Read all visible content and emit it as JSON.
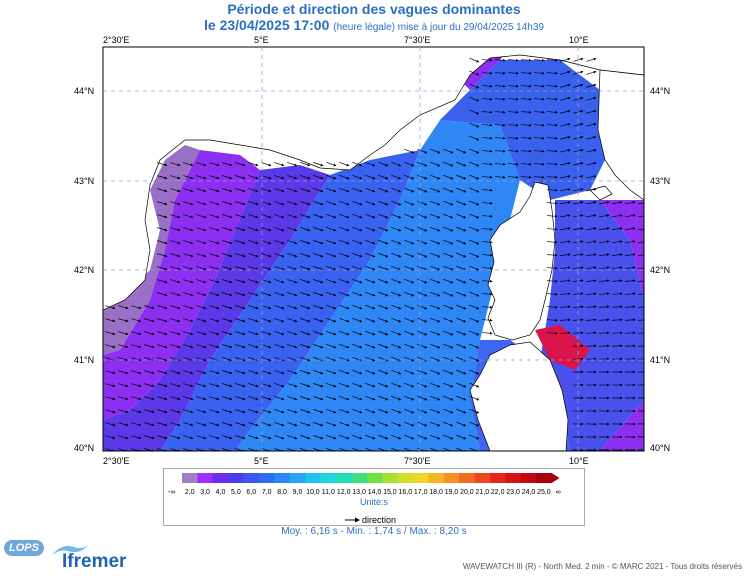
{
  "title": "Période et direction des vagues dominantes",
  "subtitle_date": "le 23/04/2025 17:00",
  "subtitle_note": "(heure légale) mise à jour du 29/04/2025 14h39",
  "lon_labels": [
    "2°30'E",
    "5°E",
    "7°30'E",
    "10°E"
  ],
  "lat_labels": [
    "44°N",
    "43°N",
    "42°N",
    "41°N",
    "40°N"
  ],
  "legend": {
    "values": [
      "2,0",
      "3,0",
      "4,0",
      "5,0",
      "6,0",
      "7,0",
      "8,0",
      "9,0",
      "10,0",
      "11,0",
      "12,0",
      "13,0",
      "14,0",
      "15,0",
      "16,0",
      "17,0",
      "18,0",
      "19,0",
      "20,0",
      "21,0",
      "22,0",
      "23,0",
      "24,0",
      "25,0"
    ],
    "low_symbol": "-∞",
    "high_symbol": "∞",
    "unit_label": "Unité:s",
    "direction_label": "direction",
    "colors": [
      "#a07ec8",
      "#9b30ff",
      "#6a2cf0",
      "#4a3de8",
      "#3a55f0",
      "#2e6cf5",
      "#2c86f5",
      "#27a4f4",
      "#22c2f0",
      "#20d6dc",
      "#22dcb4",
      "#3ede7a",
      "#6fe046",
      "#a6e033",
      "#d0e02a",
      "#f0d628",
      "#f6b525",
      "#f69022",
      "#f46a1f",
      "#f0461c",
      "#e8251a",
      "#d41218",
      "#c00814",
      "#a80010"
    ]
  },
  "stats": "Moy. : 6,16 s   -   Min. : 1,74 s / Max. : 8,20 s",
  "credit": "WAVEWATCH III (R) - North Med. 2 min - © MARC 2021 - Tous droits réservés",
  "logo_lops": "LOPS",
  "logo_ifremer": "Ifremer"
}
